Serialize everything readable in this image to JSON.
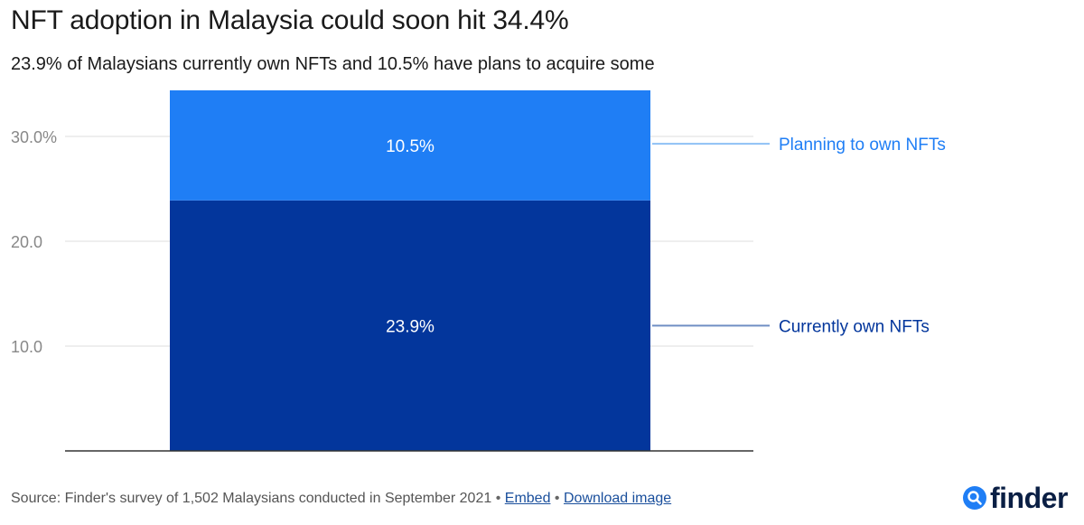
{
  "header": {
    "title": "NFT adoption in Malaysia could soon hit 34.4%",
    "subtitle": "23.9% of Malaysians currently own NFTs and 10.5% have plans to acquire some"
  },
  "chart_data": {
    "type": "bar",
    "stacked": true,
    "categories": [
      ""
    ],
    "series": [
      {
        "name": "Currently own NFTs",
        "values": [
          23.9
        ],
        "label": "23.9%",
        "color": "#03369c",
        "line_color": "#6f8fc4"
      },
      {
        "name": "Planning to own NFTs",
        "values": [
          10.5
        ],
        "label": "10.5%",
        "color": "#1f7ef5",
        "line_color": "#8ec1f5"
      }
    ],
    "y_ticks": [
      {
        "value": 10,
        "label": "10.0"
      },
      {
        "value": 20,
        "label": "20.0"
      },
      {
        "value": 30,
        "label": "30.0%"
      }
    ],
    "ylim": [
      0,
      34.4
    ],
    "grid": true,
    "legend": "right, inline labels"
  },
  "footer": {
    "source": "Source: Finder's survey of 1,502 Malaysians conducted in September 2021",
    "separator": "•",
    "embed_label": "Embed",
    "download_label": "Download image"
  },
  "logo": {
    "text": "finder",
    "icon": "magnifier-icon",
    "color": "#0a1f44",
    "accent": "#1f7ef5"
  }
}
